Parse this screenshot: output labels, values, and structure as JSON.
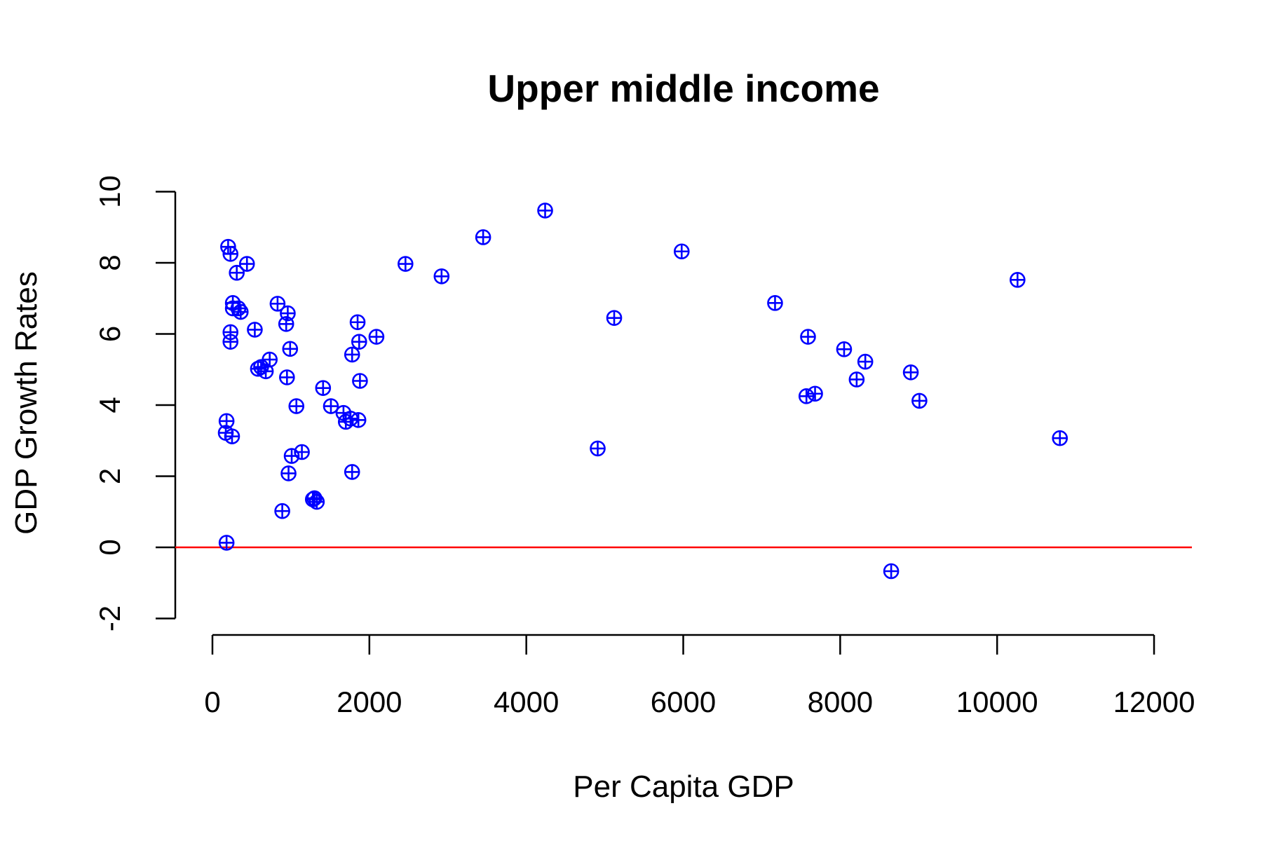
{
  "chart_data": {
    "type": "scatter",
    "title": "Upper middle income",
    "xlabel": "Per Capita GDP",
    "ylabel": "GDP Growth Rates",
    "xlim": [
      -500,
      12500
    ],
    "ylim": [
      -2,
      10
    ],
    "x_ticks": [
      "0",
      "2000",
      "4000",
      "6000",
      "8000",
      "10000",
      "12000"
    ],
    "y_ticks": [
      "-2",
      "0",
      "2",
      "4",
      "6",
      "8",
      "10"
    ],
    "marker": "circle-plus",
    "marker_color": "#0000ff",
    "reference_line": {
      "y": 0,
      "color": "#ff0000"
    },
    "grid": false,
    "x": [
      200,
      230,
      310,
      440,
      260,
      230,
      540,
      330,
      360,
      230,
      260,
      580,
      620,
      680,
      730,
      830,
      940,
      960,
      990,
      950,
      1070,
      180,
      170,
      250,
      180,
      1010,
      1140,
      970,
      890,
      1280,
      1300,
      1330,
      1410,
      1510,
      1670,
      1700,
      1760,
      1860,
      1780,
      1850,
      1870,
      1880,
      2090,
      1780,
      2460,
      2920,
      3450,
      4240,
      5120,
      4910,
      5980,
      7170,
      7590,
      7570,
      7680,
      8050,
      8210,
      8320,
      8900,
      9010,
      8650,
      10260,
      10800
    ],
    "y": [
      8.45,
      8.25,
      7.72,
      7.97,
      6.87,
      6.05,
      6.12,
      6.72,
      6.62,
      5.78,
      6.72,
      5.02,
      5.07,
      4.95,
      5.28,
      6.85,
      6.28,
      6.58,
      5.58,
      4.78,
      3.97,
      0.13,
      3.22,
      3.12,
      3.55,
      2.57,
      2.68,
      2.08,
      1.02,
      1.35,
      1.38,
      1.28,
      4.48,
      3.97,
      3.78,
      3.53,
      3.62,
      3.58,
      5.42,
      6.33,
      5.78,
      4.68,
      5.92,
      2.12,
      7.97,
      7.62,
      8.72,
      9.47,
      6.45,
      2.78,
      8.32,
      6.87,
      5.92,
      4.25,
      4.32,
      5.57,
      4.72,
      5.22,
      4.92,
      4.12,
      -0.67,
      7.52,
      3.07
    ]
  }
}
